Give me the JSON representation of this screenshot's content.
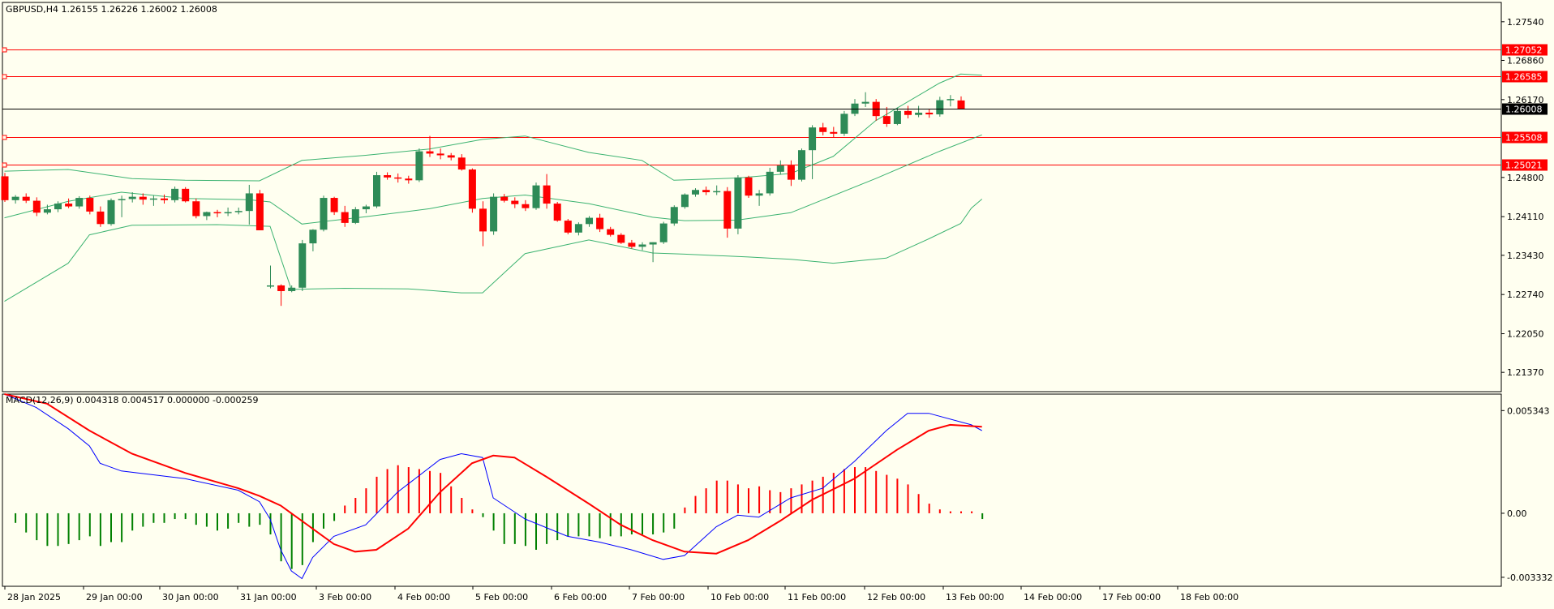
{
  "main_header": "GBPUSD,H4  1.26155 1.26226 1.26002 1.26008",
  "macd_header": "MACD(12,26,9) 0.004318 0.004517 0.000000 -0.000259",
  "colors": {
    "background": "#fffff0",
    "bull": "#2e8b57",
    "bear": "#ff0000",
    "bands": "#3cb371",
    "level_line": "#ff0000",
    "price_line": "#000000",
    "macd_line": "#0000ff",
    "signal_line": "#ff0000",
    "hist_pos": "#ff0000",
    "hist_neg": "#008000"
  },
  "chart_data": [
    {
      "type": "candlestick",
      "title": "GBPUSD,H4",
      "ohlc_label": "1.26155 1.26226 1.26002 1.26008",
      "ylim": [
        1.2103,
        1.2788
      ],
      "y_ticks": [
        "1.27540",
        "1.26860",
        "1.26170",
        "1.24800",
        "1.24110",
        "1.23430",
        "1.22740",
        "1.22050",
        "1.21370"
      ],
      "y_tick_values": [
        1.2754,
        1.2686,
        1.2617,
        1.248,
        1.2411,
        1.2343,
        1.2274,
        1.2205,
        1.2137
      ],
      "x_labels": [
        "28 Jan 2025",
        "29 Jan 00:00",
        "30 Jan 00:00",
        "31 Jan 00:00",
        "3 Feb 00:00",
        "4 Feb 00:00",
        "5 Feb 00:00",
        "6 Feb 00:00",
        "7 Feb 00:00",
        "10 Feb 00:00",
        "11 Feb 00:00",
        "12 Feb 00:00",
        "13 Feb 00:00",
        "14 Feb 00:00",
        "17 Feb 00:00",
        "18 Feb 00:00"
      ],
      "horizontal_levels": [
        {
          "label": "1.27052",
          "value": 1.27052
        },
        {
          "label": "1.26585",
          "value": 1.26585
        },
        {
          "label": "1.25508",
          "value": 1.25508
        },
        {
          "label": "1.25021",
          "value": 1.25021
        }
      ],
      "current_price": {
        "label": "1.26008",
        "value": 1.26008
      },
      "candles": [
        [
          1.2482,
          1.2488,
          1.2437,
          1.244
        ],
        [
          1.244,
          1.2449,
          1.2434,
          1.2446
        ],
        [
          1.2446,
          1.2452,
          1.2435,
          1.2439
        ],
        [
          1.2439,
          1.2445,
          1.2412,
          1.2418
        ],
        [
          1.2418,
          1.2432,
          1.2415,
          1.2424
        ],
        [
          1.2424,
          1.2438,
          1.2419,
          1.2434
        ],
        [
          1.2434,
          1.2443,
          1.2426,
          1.2429
        ],
        [
          1.2429,
          1.2447,
          1.2425,
          1.2444
        ],
        [
          1.2444,
          1.2448,
          1.2415,
          1.242
        ],
        [
          1.242,
          1.2429,
          1.2393,
          1.2398
        ],
        [
          1.2398,
          1.2443,
          1.2395,
          1.244
        ],
        [
          1.244,
          1.2448,
          1.241,
          1.2442
        ],
        [
          1.2442,
          1.2454,
          1.2436,
          1.2446
        ],
        [
          1.2446,
          1.2452,
          1.2432,
          1.2441
        ],
        [
          1.2441,
          1.2448,
          1.243,
          1.2443
        ],
        [
          1.2443,
          1.245,
          1.2434,
          1.244
        ],
        [
          1.244,
          1.2464,
          1.2436,
          1.246
        ],
        [
          1.246,
          1.2463,
          1.2436,
          1.2438
        ],
        [
          1.2438,
          1.2443,
          1.2408,
          1.2412
        ],
        [
          1.2412,
          1.242,
          1.2405,
          1.2419
        ],
        [
          1.2419,
          1.2423,
          1.241,
          1.2418
        ],
        [
          1.2418,
          1.2427,
          1.2412,
          1.2419
        ],
        [
          1.2419,
          1.2427,
          1.2415,
          1.2421
        ],
        [
          1.2421,
          1.2467,
          1.2397,
          1.2452
        ],
        [
          1.2452,
          1.2458,
          1.2392,
          1.2387
        ],
        [
          1.2288,
          1.2325,
          1.2285,
          1.229
        ],
        [
          1.229,
          1.2292,
          1.2254,
          1.228
        ],
        [
          1.228,
          1.229,
          1.2278,
          1.2286
        ],
        [
          1.2286,
          1.237,
          1.228,
          1.2364
        ],
        [
          1.2364,
          1.2389,
          1.235,
          1.2388
        ],
        [
          1.2388,
          1.2448,
          1.2385,
          1.2444
        ],
        [
          1.2444,
          1.2446,
          1.2414,
          1.2419
        ],
        [
          1.2419,
          1.243,
          1.2393,
          1.24
        ],
        [
          1.24,
          1.2428,
          1.2398,
          1.2424
        ],
        [
          1.2424,
          1.2432,
          1.2417,
          1.2429
        ],
        [
          1.2429,
          1.249,
          1.2426,
          1.2484
        ],
        [
          1.2484,
          1.2489,
          1.2476,
          1.248
        ],
        [
          1.248,
          1.2487,
          1.2471,
          1.2478
        ],
        [
          1.2478,
          1.2483,
          1.2469,
          1.2475
        ],
        [
          1.2475,
          1.2531,
          1.2472,
          1.2526
        ],
        [
          1.2526,
          1.2553,
          1.2516,
          1.2522
        ],
        [
          1.2522,
          1.2531,
          1.2512,
          1.2519
        ],
        [
          1.2519,
          1.2523,
          1.251,
          1.2515
        ],
        [
          1.2515,
          1.2521,
          1.2492,
          1.2494
        ],
        [
          1.2494,
          1.2496,
          1.2418,
          1.2425
        ],
        [
          1.2425,
          1.2438,
          1.2359,
          1.2385
        ],
        [
          1.2385,
          1.2452,
          1.2379,
          1.2446
        ],
        [
          1.2446,
          1.2451,
          1.2436,
          1.2439
        ],
        [
          1.2439,
          1.2445,
          1.2426,
          1.2433
        ],
        [
          1.2433,
          1.244,
          1.2421,
          1.2426
        ],
        [
          1.2426,
          1.2471,
          1.2423,
          1.2466
        ],
        [
          1.2466,
          1.2486,
          1.2425,
          1.2434
        ],
        [
          1.2434,
          1.2437,
          1.2402,
          1.2404
        ],
        [
          1.2404,
          1.2407,
          1.238,
          1.2383
        ],
        [
          1.2383,
          1.2401,
          1.2378,
          1.2398
        ],
        [
          1.2398,
          1.2412,
          1.2393,
          1.2409
        ],
        [
          1.2409,
          1.2416,
          1.2384,
          1.2389
        ],
        [
          1.2389,
          1.2393,
          1.2376,
          1.2379
        ],
        [
          1.2379,
          1.2382,
          1.2363,
          1.2365
        ],
        [
          1.2365,
          1.237,
          1.2355,
          1.2358
        ],
        [
          1.2358,
          1.2366,
          1.2352,
          1.2362
        ],
        [
          1.2362,
          1.2366,
          1.2331,
          1.2366
        ],
        [
          1.2366,
          1.2402,
          1.2363,
          1.2399
        ],
        [
          1.2399,
          1.2431,
          1.2395,
          1.2428
        ],
        [
          1.2428,
          1.2452,
          1.2425,
          1.245
        ],
        [
          1.245,
          1.2461,
          1.2446,
          1.2458
        ],
        [
          1.2458,
          1.2464,
          1.2449,
          1.2454
        ],
        [
          1.2454,
          1.2466,
          1.2449,
          1.2456
        ],
        [
          1.2456,
          1.2463,
          1.2374,
          1.239
        ],
        [
          1.239,
          1.2484,
          1.238,
          1.248
        ],
        [
          1.248,
          1.2483,
          1.2444,
          1.2448
        ],
        [
          1.2448,
          1.2458,
          1.243,
          1.2452
        ],
        [
          1.2452,
          1.2497,
          1.2448,
          1.249
        ],
        [
          1.249,
          1.251,
          1.2485,
          1.2501
        ],
        [
          1.2501,
          1.251,
          1.2465,
          1.2476
        ],
        [
          1.2476,
          1.2531,
          1.2473,
          1.2528
        ],
        [
          1.2528,
          1.2572,
          1.2477,
          1.2568
        ],
        [
          1.2568,
          1.2576,
          1.2554,
          1.256
        ],
        [
          1.256,
          1.2569,
          1.255,
          1.2557
        ],
        [
          1.2557,
          1.2597,
          1.2553,
          1.2592
        ],
        [
          1.2592,
          1.2618,
          1.2588,
          1.261
        ],
        [
          1.261,
          1.263,
          1.2604,
          1.2613
        ],
        [
          1.2613,
          1.2618,
          1.258,
          1.2588
        ],
        [
          1.2588,
          1.2604,
          1.2569,
          1.2574
        ],
        [
          1.2574,
          1.2603,
          1.2572,
          1.2597
        ],
        [
          1.2597,
          1.2606,
          1.2584,
          1.259
        ],
        [
          1.259,
          1.2606,
          1.2586,
          1.2594
        ],
        [
          1.2594,
          1.2601,
          1.2585,
          1.2591
        ],
        [
          1.2591,
          1.2622,
          1.2587,
          1.2616
        ],
        [
          1.2616,
          1.2625,
          1.2605,
          1.2618
        ],
        [
          1.26155,
          1.26226,
          1.26002,
          1.26008
        ]
      ],
      "bollinger": {
        "upper": [
          [
            0,
            1.2491
          ],
          [
            6,
            1.2494
          ],
          [
            12,
            1.2478
          ],
          [
            17,
            1.2475
          ],
          [
            24,
            1.2474
          ],
          [
            28,
            1.251
          ],
          [
            34,
            1.2519
          ],
          [
            40,
            1.253
          ],
          [
            45,
            1.2547
          ],
          [
            49,
            1.2553
          ],
          [
            55,
            1.2524
          ],
          [
            60,
            1.251
          ],
          [
            63,
            1.2475
          ],
          [
            69,
            1.2479
          ],
          [
            74,
            1.2487
          ],
          [
            78,
            1.2517
          ],
          [
            82,
            1.258
          ],
          [
            88,
            1.2646
          ],
          [
            90,
            1.2662
          ],
          [
            92,
            1.266
          ]
        ],
        "middle": [
          [
            0,
            1.2409
          ],
          [
            6,
            1.2438
          ],
          [
            11,
            1.2454
          ],
          [
            17,
            1.2443
          ],
          [
            23,
            1.2441
          ],
          [
            25,
            1.2437
          ],
          [
            28,
            1.2398
          ],
          [
            34,
            1.2411
          ],
          [
            40,
            1.2425
          ],
          [
            45,
            1.2443
          ],
          [
            49,
            1.2449
          ],
          [
            55,
            1.2434
          ],
          [
            61,
            1.241
          ],
          [
            64,
            1.2404
          ],
          [
            69,
            1.2405
          ],
          [
            74,
            1.2418
          ],
          [
            82,
            1.2478
          ],
          [
            88,
            1.2526
          ],
          [
            92,
            1.2555
          ]
        ],
        "lower": [
          [
            0,
            1.2262
          ],
          [
            6,
            1.2329
          ],
          [
            8,
            1.2379
          ],
          [
            12,
            1.2396
          ],
          [
            20,
            1.2397
          ],
          [
            25,
            1.2394
          ],
          [
            27,
            1.2283
          ],
          [
            32,
            1.2285
          ],
          [
            38,
            1.2284
          ],
          [
            43,
            1.2277
          ],
          [
            45,
            1.2277
          ],
          [
            49,
            1.2346
          ],
          [
            55,
            1.237
          ],
          [
            61,
            1.2347
          ],
          [
            64,
            1.2345
          ],
          [
            70,
            1.234
          ],
          [
            74,
            1.2336
          ],
          [
            78,
            1.2329
          ],
          [
            83,
            1.2338
          ],
          [
            87,
            1.2372
          ],
          [
            90,
            1.2399
          ],
          [
            91,
            1.2426
          ],
          [
            92,
            1.2442
          ]
        ]
      }
    },
    {
      "type": "macd",
      "title": "MACD(12,26,9)",
      "values_label": "0.004318 0.004517 0.000000 -0.000259",
      "ylim": [
        -0.0038,
        0.0062
      ],
      "y_ticks": [
        "0.005343",
        "0.00",
        "-0.003332"
      ],
      "y_tick_values": [
        0.005343,
        0.0,
        -0.003332
      ],
      "histogram": [
        0,
        -0.0005,
        -0.001,
        -0.0014,
        -0.0017,
        -0.0017,
        -0.0016,
        -0.0014,
        -0.0012,
        -0.0017,
        -0.0015,
        -0.0015,
        -0.0009,
        -0.0007,
        -0.0005,
        -0.0005,
        -0.0003,
        -0.0003,
        -0.0006,
        -0.0007,
        -0.0009,
        -0.0008,
        -0.0005,
        -0.0007,
        -0.0006,
        -0.0011,
        -0.0025,
        -0.0029,
        -0.0027,
        -0.0015,
        -0.0008,
        -0.0004,
        0.0004,
        0.0008,
        0.0013,
        0.0019,
        0.0023,
        0.0025,
        0.0024,
        0.0023,
        0.0022,
        0.0021,
        0.0014,
        0.0008,
        0.0002,
        -0.0002,
        -0.0009,
        -0.0016,
        -0.0016,
        -0.0017,
        -0.0019,
        -0.0016,
        -0.0014,
        -0.0012,
        -0.0012,
        -0.0012,
        -0.0013,
        -0.0012,
        -0.0012,
        -0.0011,
        -0.0011,
        -0.0011,
        -0.001,
        -0.0008,
        0.0003,
        0.0009,
        0.0013,
        0.0017,
        0.0017,
        0.0015,
        0.0013,
        0.0014,
        0.0012,
        0.0011,
        0.0013,
        0.0015,
        0.0017,
        0.0019,
        0.0021,
        0.0023,
        0.0024,
        0.0024,
        0.0022,
        0.002,
        0.0018,
        0.0015,
        0.001,
        0.0005,
        0.0002,
        0.0001,
        0.0001,
        0.0001,
        -0.0003
      ],
      "macd": [
        [
          0,
          0.0062
        ],
        [
          3,
          0.0055
        ],
        [
          6,
          0.0044
        ],
        [
          8,
          0.0035
        ],
        [
          9,
          0.0026
        ],
        [
          11,
          0.0022
        ],
        [
          17,
          0.0018
        ],
        [
          22,
          0.0012
        ],
        [
          24,
          0.0006
        ],
        [
          25,
          -0.0003
        ],
        [
          26,
          -0.0019
        ],
        [
          27,
          -0.003
        ],
        [
          28,
          -0.0034
        ],
        [
          29,
          -0.0023
        ],
        [
          31,
          -0.0012
        ],
        [
          34,
          -0.0006
        ],
        [
          37,
          0.0011
        ],
        [
          41,
          0.0028
        ],
        [
          43,
          0.0031
        ],
        [
          45,
          0.0029
        ],
        [
          46,
          0.0008
        ],
        [
          49,
          -0.0003
        ],
        [
          53,
          -0.0012
        ],
        [
          56,
          -0.0015
        ],
        [
          59,
          -0.0019
        ],
        [
          62,
          -0.0024
        ],
        [
          64,
          -0.0022
        ],
        [
          67,
          -0.0007
        ],
        [
          69,
          -0.0001
        ],
        [
          71,
          -0.0002
        ],
        [
          74,
          0.0008
        ],
        [
          77,
          0.0013
        ],
        [
          80,
          0.0027
        ],
        [
          83,
          0.0043
        ],
        [
          85,
          0.0052
        ],
        [
          87,
          0.0052
        ],
        [
          91,
          0.0046
        ],
        [
          92,
          0.0043
        ]
      ],
      "signal": [
        [
          0,
          0.0062
        ],
        [
          4,
          0.0057
        ],
        [
          8,
          0.0043
        ],
        [
          12,
          0.0031
        ],
        [
          17,
          0.0021
        ],
        [
          22,
          0.0013
        ],
        [
          24,
          0.0009
        ],
        [
          26,
          0.0004
        ],
        [
          29,
          -0.0008
        ],
        [
          31,
          -0.0016
        ],
        [
          33,
          -0.002
        ],
        [
          35,
          -0.0019
        ],
        [
          38,
          -0.0008
        ],
        [
          41,
          0.0011
        ],
        [
          44,
          0.0026
        ],
        [
          46,
          0.003
        ],
        [
          48,
          0.0029
        ],
        [
          51,
          0.0019
        ],
        [
          55,
          0.0005
        ],
        [
          58,
          -0.0006
        ],
        [
          61,
          -0.0014
        ],
        [
          64,
          -0.002
        ],
        [
          67,
          -0.0021
        ],
        [
          70,
          -0.0014
        ],
        [
          73,
          -0.0004
        ],
        [
          76,
          0.0007
        ],
        [
          80,
          0.0018
        ],
        [
          84,
          0.0033
        ],
        [
          87,
          0.0043
        ],
        [
          89,
          0.0046
        ],
        [
          92,
          0.0045
        ]
      ]
    }
  ]
}
